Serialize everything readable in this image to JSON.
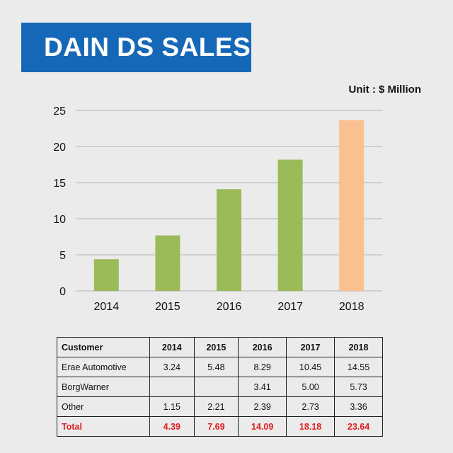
{
  "title": "DAIN DS SALES",
  "unit": "Unit : $ Million",
  "chart_data": {
    "type": "bar",
    "categories": [
      "2014",
      "2015",
      "2016",
      "2017",
      "2018"
    ],
    "values": [
      4.39,
      7.69,
      14.09,
      18.18,
      23.64
    ],
    "ylim": [
      0,
      25
    ],
    "yticks": [
      "0",
      "5",
      "10",
      "15",
      "20",
      "25"
    ],
    "grid": true,
    "bar_colors": [
      "#9bbb59",
      "#9bbb59",
      "#9bbb59",
      "#9bbb59",
      "#fac090"
    ]
  },
  "table": {
    "header_label": "Customer",
    "years": [
      "2014",
      "2015",
      "2016",
      "2017",
      "2018"
    ],
    "rows": [
      {
        "customer": "Erae Automotive",
        "values": [
          "3.24",
          "5.48",
          "8.29",
          "10.45",
          "14.55"
        ]
      },
      {
        "customer": "BorgWarner",
        "values": [
          "",
          "",
          "3.41",
          "5.00",
          "5.73"
        ]
      },
      {
        "customer": "Other",
        "values": [
          "1.15",
          "2.21",
          "2.39",
          "2.73",
          "3.36"
        ]
      }
    ],
    "total": {
      "customer": "Total",
      "values": [
        "4.39",
        "7.69",
        "14.09",
        "18.18",
        "23.64"
      ]
    },
    "total_color": "#e0201f"
  }
}
